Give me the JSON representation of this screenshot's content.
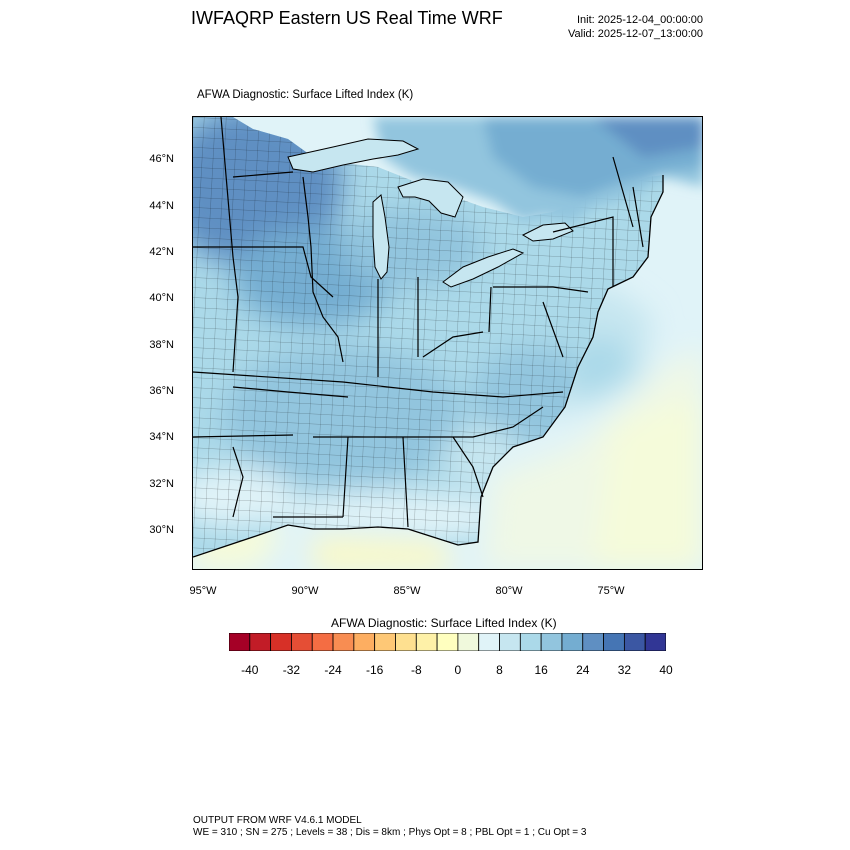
{
  "header": {
    "title": "IWFAQRP Eastern US Real Time WRF",
    "init": "Init: 2025-12-04_00:00:00",
    "valid": "Valid: 2025-12-07_13:00:00"
  },
  "plot": {
    "subtitle": "AFWA Diagnostic: Surface Lifted Index   (K)",
    "lat_labels": [
      "46°N",
      "44°N",
      "42°N",
      "40°N",
      "38°N",
      "36°N",
      "34°N",
      "32°N",
      "30°N"
    ],
    "lon_labels": [
      "95°W",
      "90°W",
      "85°W",
      "80°W",
      "75°W"
    ]
  },
  "colorbar": {
    "title": "AFWA Diagnostic: Surface Lifted Index  (K)",
    "labels": [
      "-40",
      "-32",
      "-24",
      "-16",
      "-8",
      "0",
      "8",
      "16",
      "24",
      "32",
      "40"
    ],
    "colors": [
      "#a50026",
      "#c21c27",
      "#d73027",
      "#e54e35",
      "#f46d43",
      "#f88d52",
      "#fdae61",
      "#fec876",
      "#fee090",
      "#fef1a8",
      "#ffffbf",
      "#f0f9dc",
      "#e0f3f8",
      "#c6e6f0",
      "#abd9e9",
      "#92c5de",
      "#74add1",
      "#5f8fc2",
      "#4575b4",
      "#3b57a3",
      "#313695"
    ]
  },
  "footer": {
    "line1": "OUTPUT FROM WRF V4.6.1 MODEL",
    "line2": "WE = 310 ; SN = 275 ; Levels = 38 ; Dis = 8km ; Phys Opt = 8 ; PBL Opt = 1 ; Cu Opt = 3"
  }
}
